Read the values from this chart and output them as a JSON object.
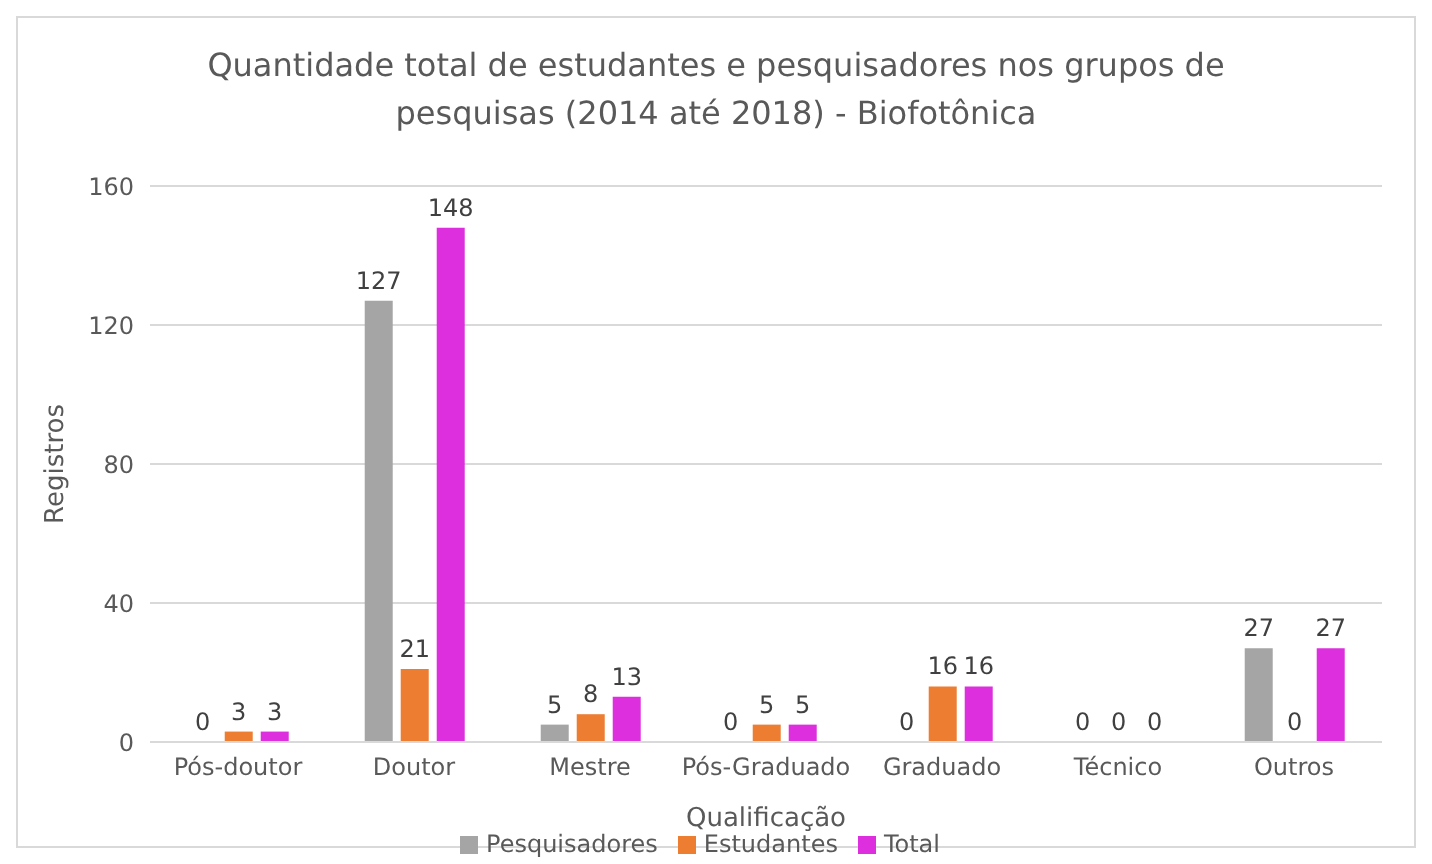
{
  "chart_data": {
    "type": "bar",
    "title": "Quantidade total de estudantes e pesquisadores nos grupos de pesquisas (2014 até 2018) - Biofotônica",
    "xlabel": "Qualificação",
    "ylabel": "Registros",
    "categories": [
      "Pós-doutor",
      "Doutor",
      "Mestre",
      "Pós-Graduado",
      "Graduado",
      "Técnico",
      "Outros"
    ],
    "series": [
      {
        "name": "Pesquisadores",
        "color": "#a5a5a5",
        "values": [
          0,
          127,
          5,
          0,
          0,
          0,
          27
        ]
      },
      {
        "name": "Estudantes",
        "color": "#ed7d31",
        "values": [
          3,
          21,
          8,
          5,
          16,
          0,
          0
        ]
      },
      {
        "name": "Total",
        "color": "#dd2fdd",
        "values": [
          3,
          148,
          13,
          5,
          16,
          0,
          27
        ]
      }
    ],
    "ylim": [
      0,
      160
    ],
    "yticks": [
      0,
      40,
      80,
      120,
      160
    ],
    "grid": "y",
    "legend": "bottom",
    "data_labels": true
  }
}
